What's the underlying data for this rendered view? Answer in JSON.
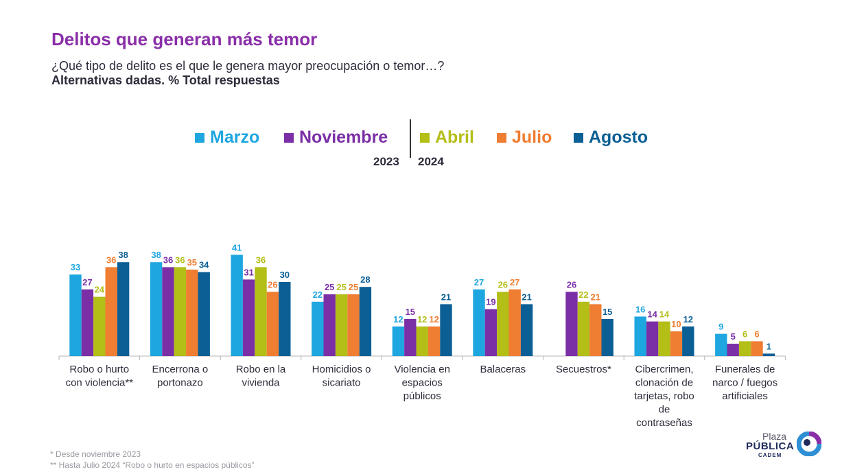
{
  "header": {
    "title": "Delitos que generan más temor",
    "subtitle": "¿Qué tipo de delito es el que le genera mayor preocupación o temor…?",
    "subtitle2": "Alternativas dadas. % Total respuestas"
  },
  "legend": {
    "years": [
      "2023",
      "2024"
    ]
  },
  "footnotes": [
    "* Desde noviembre 2023",
    "** Hasta Julio 2024 “Robo o hurto en espacios públicos”"
  ],
  "logo": {
    "line1": "Plaza",
    "line2": "PÚBLICA",
    "line3": "CADEM"
  },
  "chart_data": {
    "type": "bar",
    "categories": [
      "Robo o hurto con violencia**",
      "Encerrona o portonazo",
      "Robo en la vivienda",
      "Homicidios o sicariato",
      "Violencia en espacios públicos",
      "Balaceras",
      "Secuestros*",
      "Cibercrimen, clonación de tarjetas, robo de contraseñas",
      "Funerales de narco / fuegos artificiales"
    ],
    "series": [
      {
        "name": "Marzo",
        "color": "#1ea6e0",
        "values": [
          33,
          38,
          41,
          22,
          12,
          27,
          null,
          16,
          9
        ]
      },
      {
        "name": "Noviembre",
        "color": "#7b2fa6",
        "values": [
          27,
          36,
          31,
          25,
          15,
          19,
          26,
          14,
          5
        ]
      },
      {
        "name": "Abril",
        "color": "#b3be17",
        "values": [
          24,
          36,
          36,
          25,
          12,
          26,
          22,
          14,
          6
        ]
      },
      {
        "name": "Julio",
        "color": "#ef7d32",
        "values": [
          36,
          35,
          26,
          25,
          12,
          27,
          21,
          10,
          6
        ]
      },
      {
        "name": "Agosto",
        "color": "#0b5f94",
        "values": [
          38,
          34,
          30,
          28,
          21,
          21,
          15,
          12,
          1
        ]
      }
    ],
    "legend_position": "top-center",
    "grid": false,
    "ylim": [
      0,
      41
    ]
  }
}
